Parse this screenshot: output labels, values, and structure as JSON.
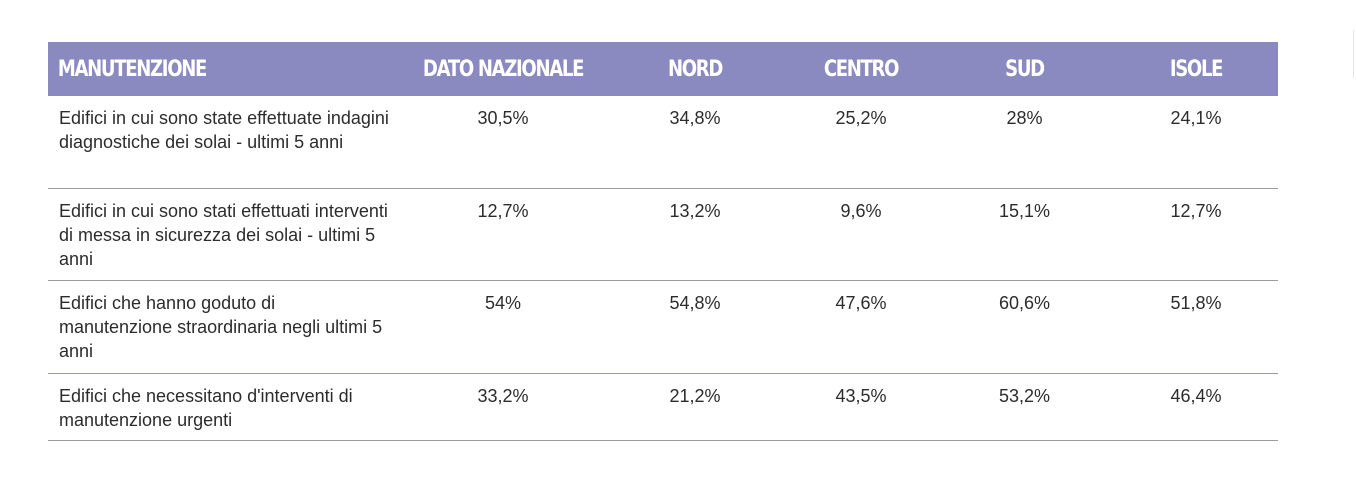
{
  "table": {
    "headers": [
      "MANUTENZIONE",
      "DATO NAZIONALE",
      "NORD",
      "CENTRO",
      "SUD",
      "ISOLE"
    ],
    "rows": [
      {
        "label": "Edifici in cui sono state effettuate indagini diagnostiche dei solai - ultimi 5 anni",
        "values": [
          "30,5%",
          "34,8%",
          "25,2%",
          "28%",
          "24,1%"
        ]
      },
      {
        "label": "Edifici in cui sono stati effettuati interventi di messa in sicurezza dei solai - ultimi 5 anni",
        "values": [
          "12,7%",
          "13,2%",
          "9,6%",
          "15,1%",
          "12,7%"
        ]
      },
      {
        "label": "Edifici che hanno goduto di manutenzione straordinaria negli ultimi 5 anni",
        "values": [
          "54%",
          "54,8%",
          "47,6%",
          "60,6%",
          "51,8%"
        ]
      },
      {
        "label": "Edifici che necessitano d'interventi di manutenzione urgenti",
        "values": [
          "33,2%",
          "21,2%",
          "43,5%",
          "53,2%",
          "46,4%"
        ]
      }
    ]
  },
  "colors": {
    "header_bg": "#8a8ac0",
    "header_text": "#ffffff",
    "body_text": "#2c2c2c",
    "row_rule": "#9a9aaa"
  }
}
